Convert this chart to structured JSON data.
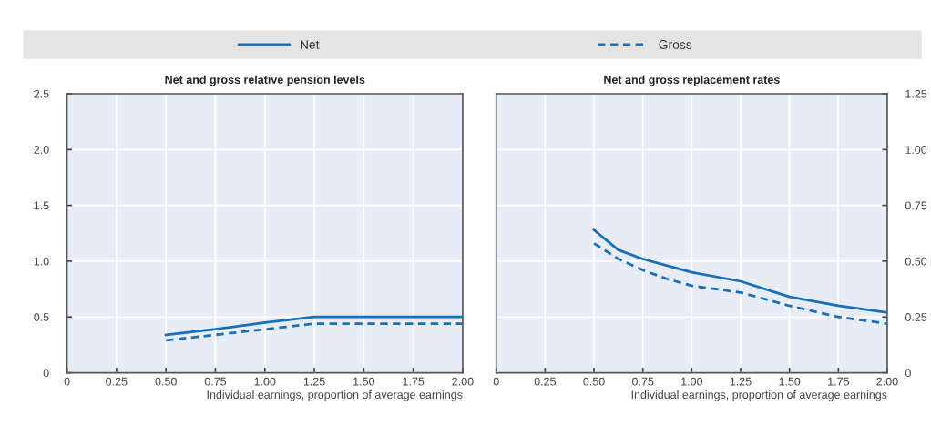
{
  "chart_data": [
    {
      "type": "line",
      "title": "Net and gross relative pension levels",
      "xlabel": "Individual earnings, proportion of average earnings",
      "legend": "top",
      "grid": true,
      "xlim": [
        0,
        2
      ],
      "xticks": [
        0,
        0.25,
        {
          "value": 0.5,
          "label": "0.50"
        },
        0.75,
        {
          "value": 1,
          "label": "1.00"
        },
        1.25,
        {
          "value": 1.5,
          "label": "1.50"
        },
        1.75,
        {
          "value": 2,
          "label": "2.00"
        }
      ],
      "ylim": [
        0,
        2.5
      ],
      "yticks": [
        0,
        0.5,
        {
          "value": 1,
          "label": "1.0"
        },
        1.5,
        {
          "value": 2,
          "label": "2.0"
        },
        2.5
      ],
      "series": [
        {
          "name": "Net",
          "color": "#1a70b8",
          "line_style": "solid",
          "x": [
            0.5,
            0.75,
            1,
            1.25,
            1.5,
            1.75,
            2
          ],
          "values": [
            0.34,
            0.39,
            0.45,
            0.5,
            0.5,
            0.5,
            0.5
          ]
        },
        {
          "name": "Gross",
          "color": "#1a70b8",
          "line_style": "dashed",
          "x": [
            0.5,
            0.75,
            1,
            1.25,
            1.5,
            1.75,
            2
          ],
          "values": [
            0.29,
            0.34,
            0.39,
            0.44,
            0.44,
            0.44,
            0.44
          ]
        }
      ]
    },
    {
      "type": "line",
      "title": "Net and gross replacement rates",
      "xlabel": "Individual earnings, proportion of average earnings",
      "grid": true,
      "xlim": [
        0,
        2
      ],
      "xticks": [
        0,
        0.25,
        {
          "value": 0.5,
          "label": "0.50"
        },
        0.75,
        {
          "value": 1,
          "label": "1.00"
        },
        1.25,
        {
          "value": 1.5,
          "label": "1.50"
        },
        1.75,
        {
          "value": 2,
          "label": "2.00"
        }
      ],
      "y2lim": [
        0,
        1.25
      ],
      "y2ticks": [
        0,
        0.25,
        {
          "value": 0.5,
          "label": "0.50"
        },
        0.75,
        {
          "value": 1,
          "label": "1.00"
        },
        1.25
      ],
      "series": [
        {
          "color": "#1a70b8",
          "line_style": "solid",
          "axis": "y2",
          "x": [
            0.5,
            0.625,
            0.75,
            0.875,
            1,
            1.25,
            1.5,
            1.75,
            2
          ],
          "values": [
            0.64,
            0.55,
            0.51,
            0.48,
            0.45,
            0.41,
            0.34,
            0.3,
            0.27
          ]
        },
        {
          "color": "#1a70b8",
          "line_style": "dashed",
          "axis": "y2",
          "x": [
            0.5,
            0.625,
            0.75,
            0.875,
            1,
            1.25,
            1.5,
            1.75,
            2
          ],
          "values": [
            0.58,
            0.51,
            0.46,
            0.42,
            0.39,
            0.36,
            0.3,
            0.25,
            0.22
          ]
        }
      ]
    }
  ]
}
